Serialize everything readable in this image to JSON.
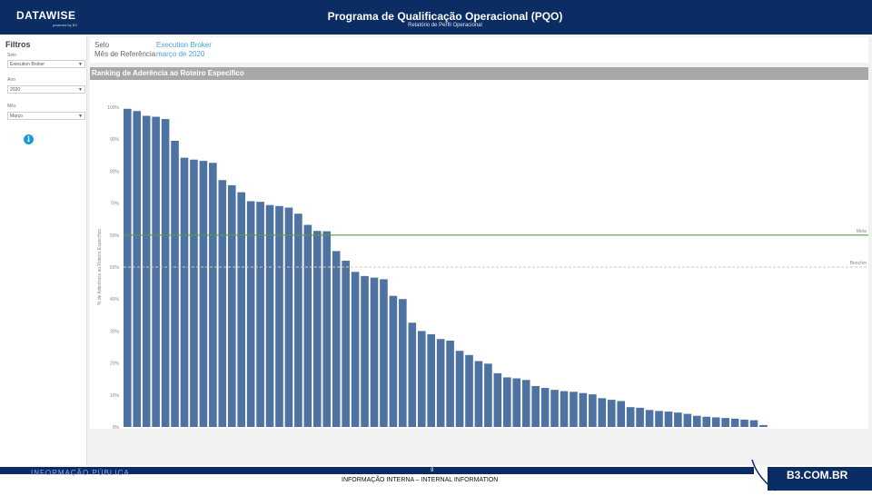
{
  "header": {
    "logo": "DATAWISE",
    "logo_sub": "powered by B3",
    "title": "Programa de Qualificação Operacional (PQO)",
    "subtitle": "Relatório de Perfil Operacional"
  },
  "sidebar": {
    "title": "Filtros",
    "filters": [
      {
        "label": "Selo",
        "value": "Execution Broker"
      },
      {
        "label": "Ano",
        "value": "2020"
      },
      {
        "label": "Mês",
        "value": "Março"
      }
    ],
    "info_icon": "info-icon"
  },
  "info": {
    "selo_label": "Selo",
    "selo_value": "Execution Broker",
    "mes_label": "Mês de Referência",
    "mes_value": "março de 2020"
  },
  "chart_header": "Ranking de Aderência ao Roteiro Específico",
  "chart_data": {
    "type": "bar",
    "title": "Ranking de Aderência ao Roteiro Específico",
    "ylabel": "% de Aderência ao Roteiro Específico",
    "ylim": [
      0,
      100
    ],
    "yticks": [
      "0%",
      "10%",
      "20%",
      "30%",
      "40%",
      "50%",
      "60%",
      "70%",
      "80%",
      "90%",
      "100%"
    ],
    "grid": false,
    "reference_lines": [
      {
        "label": "Meta",
        "value": 60,
        "color": "#5a9a46"
      },
      {
        "label": "Benchm",
        "value": 50,
        "color": "#d9c9ad"
      }
    ],
    "series": [
      {
        "values": [
          99.5,
          98.8,
          97.3,
          97.0,
          96.3,
          89.5,
          84.2,
          83.6,
          83.2,
          82.6,
          77.2,
          75.6,
          73.4,
          70.6,
          70.4,
          69.4,
          69.1,
          68.6,
          66.7,
          63.2,
          61.3,
          61.2,
          55.0,
          52.0,
          48.5,
          47.2,
          46.7,
          46.2,
          41.0,
          40.0,
          32.6,
          30.0,
          29.0,
          27.5,
          27.0,
          23.8,
          22.5,
          20.6,
          19.8,
          16.8,
          15.5,
          15.2,
          14.7,
          12.8,
          12.2,
          11.6,
          11.2,
          11.0,
          10.6,
          10.2,
          9.0,
          8.5,
          8.1,
          6.2,
          6.0,
          5.3,
          5.0,
          4.8,
          4.5,
          4.1,
          3.5,
          3.2,
          3.0,
          2.8,
          2.6,
          2.3,
          2.1,
          0.6
        ]
      }
    ],
    "bar_color": "#4e73a3"
  },
  "footer": {
    "left": "INFORMAÇÃO PÚBLICA",
    "page": "9",
    "center": "INFORMAÇÃO INTERNA – INTERNAL INFORMATION",
    "brand": "B3.COM.BR"
  }
}
